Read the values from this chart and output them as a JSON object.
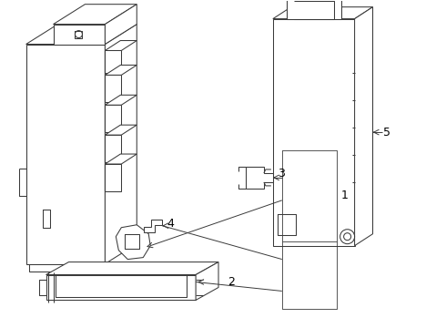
{
  "background_color": "#ffffff",
  "line_color": "#3a3a3a",
  "label_color": "#000000",
  "lw": 0.75,
  "lw_thick": 1.0,
  "fig_w": 4.9,
  "fig_h": 3.6,
  "dpi": 100
}
